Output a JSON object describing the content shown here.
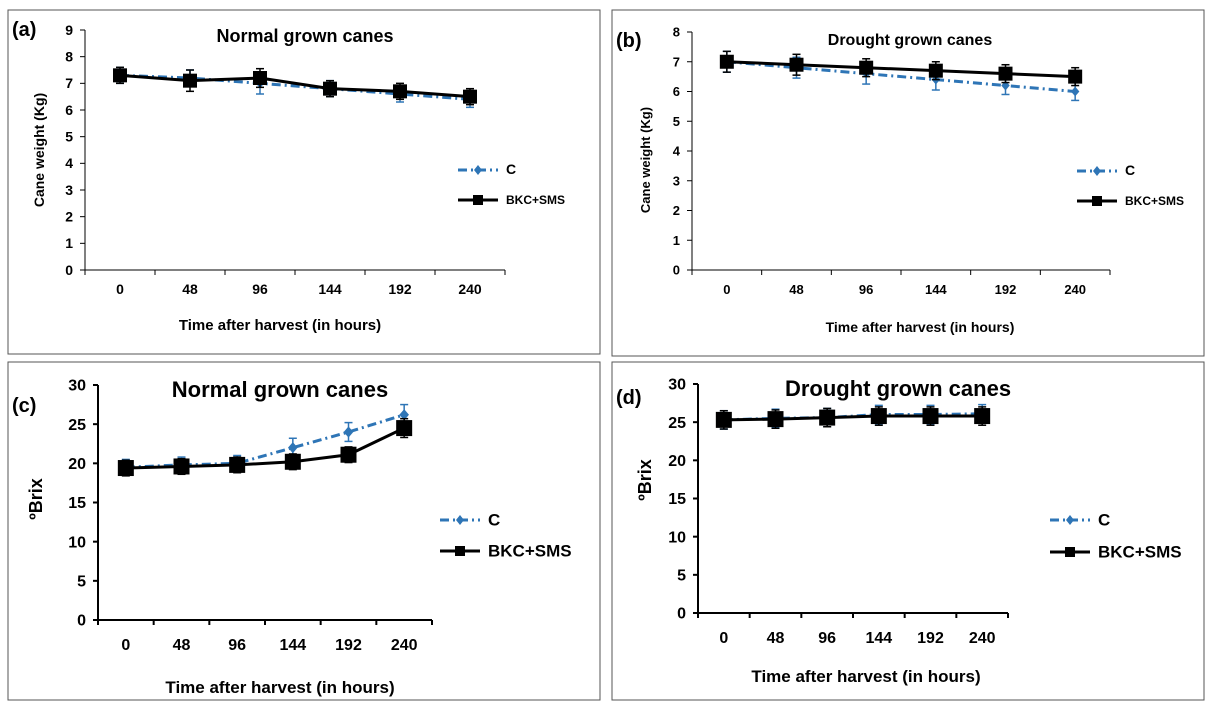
{
  "colors": {
    "c_series": "#2E75B6",
    "bkc_series": "#000000",
    "frame": "#555555"
  },
  "chart_data": [
    {
      "panel": "(a)",
      "type": "line",
      "title": "Normal grown canes",
      "xlabel": "Time after harvest (in hours)",
      "ylabel": "Cane weight (Kg)",
      "categories": [
        "0",
        "48",
        "96",
        "144",
        "192",
        "240"
      ],
      "ylim": [
        0,
        9
      ],
      "yticks": [
        0,
        1,
        2,
        3,
        4,
        5,
        6,
        7,
        8,
        9
      ],
      "grid": false,
      "legend": "right",
      "series": [
        {
          "name": "C",
          "style": "dash-dot",
          "marker": "diamond",
          "color": "#2E75B6",
          "values": [
            7.3,
            7.2,
            7.0,
            6.8,
            6.6,
            6.4
          ],
          "errors": [
            0.3,
            0.3,
            0.4,
            0.3,
            0.3,
            0.3
          ]
        },
        {
          "name": "BKC+SMS",
          "style": "solid",
          "marker": "square",
          "color": "#000000",
          "values": [
            7.3,
            7.1,
            7.2,
            6.8,
            6.7,
            6.5
          ],
          "errors": [
            0.3,
            0.4,
            0.35,
            0.3,
            0.3,
            0.3
          ]
        }
      ]
    },
    {
      "panel": "(b)",
      "type": "line",
      "title": "Drought grown canes",
      "xlabel": "Time after harvest (in hours)",
      "ylabel": "Cane weight (Kg)",
      "categories": [
        "0",
        "48",
        "96",
        "144",
        "192",
        "240"
      ],
      "ylim": [
        0,
        8
      ],
      "yticks": [
        0,
        1,
        2,
        3,
        4,
        5,
        6,
        7,
        8
      ],
      "grid": false,
      "legend": "right",
      "series": [
        {
          "name": "C",
          "style": "dash-dot",
          "marker": "diamond",
          "color": "#2E75B6",
          "values": [
            7.0,
            6.8,
            6.6,
            6.4,
            6.2,
            6.0
          ],
          "errors": [
            0.35,
            0.35,
            0.35,
            0.35,
            0.3,
            0.3
          ]
        },
        {
          "name": "BKC+SMS",
          "style": "solid",
          "marker": "square",
          "color": "#000000",
          "values": [
            7.0,
            6.9,
            6.8,
            6.7,
            6.6,
            6.5
          ],
          "errors": [
            0.35,
            0.35,
            0.3,
            0.3,
            0.3,
            0.3
          ]
        }
      ]
    },
    {
      "panel": "(c)",
      "type": "line",
      "title": "Normal grown canes",
      "xlabel": "Time after harvest (in hours)",
      "ylabel": "ºBrix",
      "categories": [
        "0",
        "48",
        "96",
        "144",
        "192",
        "240"
      ],
      "ylim": [
        0,
        30
      ],
      "yticks": [
        0,
        5,
        10,
        15,
        20,
        25,
        30
      ],
      "grid": false,
      "legend": "right",
      "series": [
        {
          "name": "C",
          "style": "dash-dot",
          "marker": "diamond",
          "color": "#2E75B6",
          "values": [
            19.5,
            19.8,
            20.0,
            22.0,
            24.0,
            26.2
          ],
          "errors": [
            1.0,
            1.0,
            1.0,
            1.2,
            1.2,
            1.3
          ]
        },
        {
          "name": "BKC+SMS",
          "style": "solid",
          "marker": "square",
          "color": "#000000",
          "values": [
            19.4,
            19.6,
            19.8,
            20.2,
            21.1,
            24.5
          ],
          "errors": [
            1.0,
            1.0,
            1.0,
            1.0,
            1.0,
            1.2
          ]
        }
      ]
    },
    {
      "panel": "(d)",
      "type": "line",
      "title": "Drought grown canes",
      "xlabel": "Time after harvest (in hours)",
      "ylabel": "ºBrix",
      "categories": [
        "0",
        "48",
        "96",
        "144",
        "192",
        "240"
      ],
      "ylim": [
        0,
        30
      ],
      "yticks": [
        0,
        5,
        10,
        15,
        20,
        25,
        30
      ],
      "grid": false,
      "legend": "right",
      "series": [
        {
          "name": "C",
          "style": "dash-dot",
          "marker": "diamond",
          "color": "#2E75B6",
          "values": [
            25.3,
            25.5,
            25.6,
            26.0,
            26.0,
            26.1
          ],
          "errors": [
            1.2,
            1.2,
            1.2,
            1.2,
            1.2,
            1.2
          ]
        },
        {
          "name": "BKC+SMS",
          "style": "solid",
          "marker": "square",
          "color": "#000000",
          "values": [
            25.3,
            25.4,
            25.6,
            25.8,
            25.8,
            25.8
          ],
          "errors": [
            1.2,
            1.2,
            1.2,
            1.2,
            1.2,
            1.2
          ]
        }
      ]
    }
  ]
}
